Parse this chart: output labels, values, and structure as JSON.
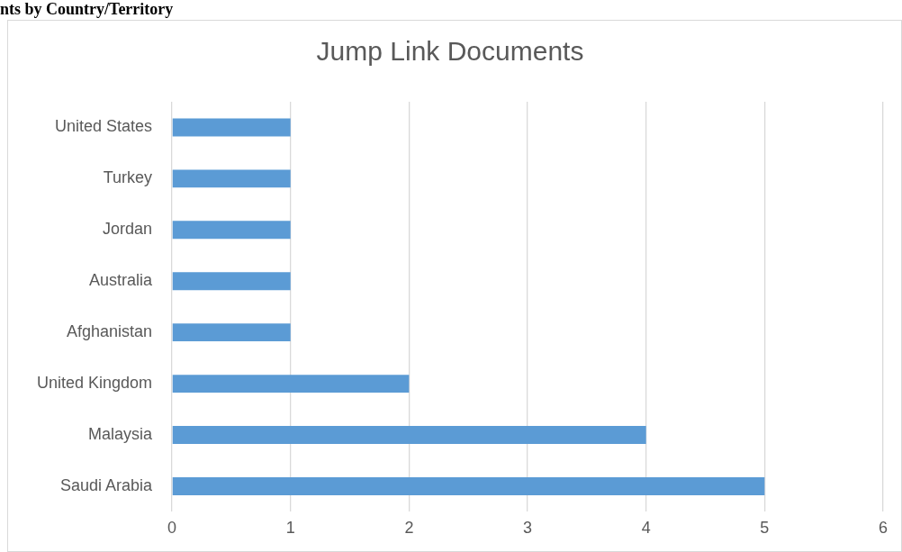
{
  "chart_data": {
    "type": "bar",
    "orientation": "horizontal",
    "title": "Jump Link Documents",
    "annotations": [
      "nts by Country/Territory"
    ],
    "categories": [
      "United States",
      "Turkey",
      "Jordan",
      "Australia",
      "Afghanistan",
      "United Kingdom",
      "Malaysia",
      "Saudi Arabia"
    ],
    "values": [
      1,
      1,
      1,
      1,
      1,
      2,
      4,
      5
    ],
    "color": "#5b9bd5",
    "xlim": [
      0,
      6
    ],
    "xticks": [
      0,
      1,
      2,
      3,
      4,
      5,
      6
    ],
    "grid": "x",
    "legend": false
  }
}
